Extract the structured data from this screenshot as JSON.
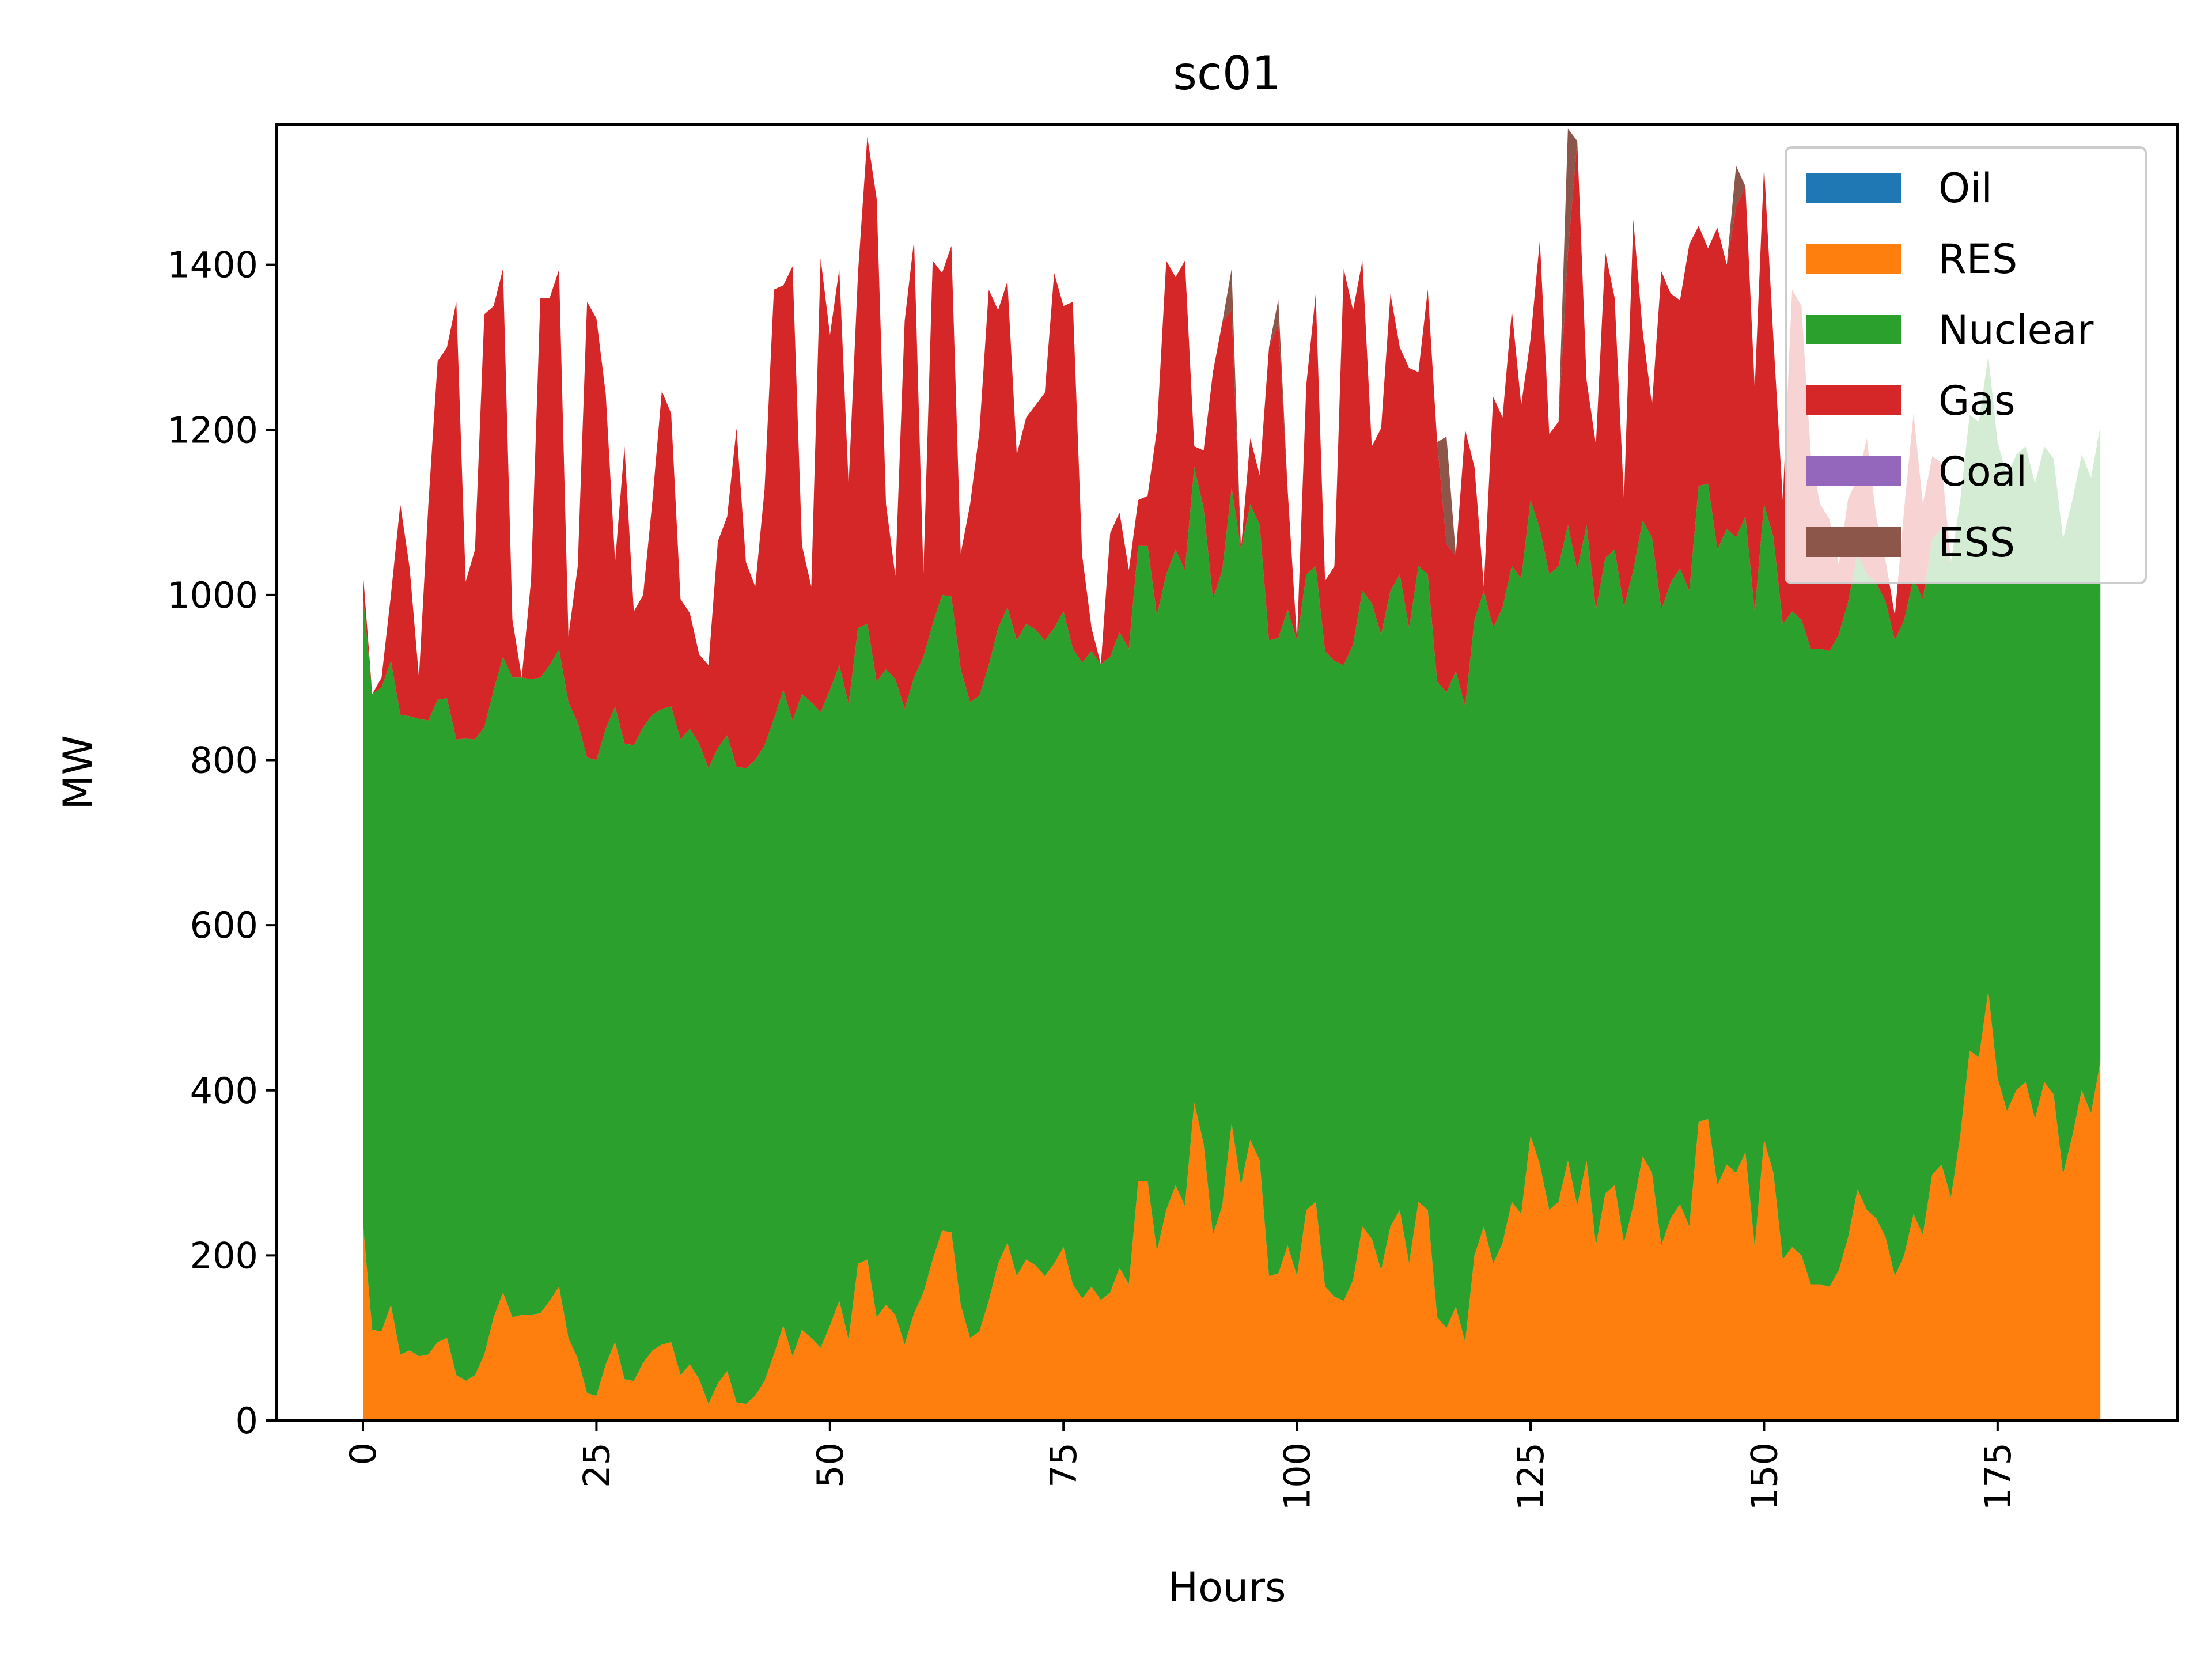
{
  "chart_data": {
    "type": "area",
    "stacked": true,
    "title": "sc01",
    "xlabel": "Hours",
    "ylabel": "MW",
    "xlim": [
      -9.25,
      194.25
    ],
    "ylim": [
      0,
      1570
    ],
    "x_ticks": [
      0,
      25,
      50,
      75,
      100,
      125,
      150,
      175
    ],
    "y_ticks": [
      0,
      200,
      400,
      600,
      800,
      1000,
      1200,
      1400
    ],
    "x_tick_rotation": 90,
    "grid": false,
    "legend_position": "top-right",
    "x_start": 0,
    "x_step": 1,
    "series": [
      {
        "name": "Oil",
        "color": "#1f77b4",
        "values": []
      },
      {
        "name": "RES",
        "color": "#ff7f0e",
        "values": [
          240,
          110,
          108,
          140,
          80,
          85,
          78,
          80,
          95,
          100,
          55,
          48,
          55,
          80,
          125,
          155,
          125,
          128,
          128,
          130,
          145,
          162,
          100,
          75,
          33,
          30,
          68,
          95,
          50,
          48,
          70,
          85,
          92,
          95,
          55,
          68,
          50,
          20,
          45,
          60,
          22,
          20,
          30,
          48,
          80,
          115,
          78,
          110,
          100,
          88,
          115,
          145,
          98,
          190,
          195,
          125,
          140,
          128,
          92,
          130,
          155,
          195,
          230,
          228,
          140,
          100,
          108,
          145,
          190,
          215,
          175,
          195,
          188,
          175,
          190,
          210,
          165,
          148,
          162,
          146,
          155,
          185,
          165,
          290,
          290,
          205,
          255,
          285,
          260,
          385,
          335,
          225,
          260,
          360,
          285,
          340,
          315,
          175,
          178,
          212,
          175,
          255,
          265,
          162,
          150,
          145,
          170,
          235,
          220,
          182,
          235,
          255,
          190,
          265,
          255,
          125,
          112,
          138,
          95,
          200,
          235,
          190,
          215,
          265,
          250,
          345,
          310,
          255,
          265,
          315,
          260,
          315,
          212,
          275,
          285,
          215,
          260,
          320,
          300,
          212,
          245,
          262,
          235,
          362,
          365,
          285,
          310,
          300,
          325,
          210,
          340,
          300,
          195,
          210,
          200,
          165,
          165,
          162,
          182,
          222,
          280,
          255,
          245,
          222,
          175,
          200,
          250,
          225,
          298,
          310,
          270,
          345,
          448,
          440,
          520,
          415,
          375,
          400,
          410,
          365,
          410,
          395,
          298,
          345,
          400,
          372,
          435
        ]
      },
      {
        "name": "Nuclear",
        "color": "#2ca02c",
        "values": [
          760,
          770,
          780,
          780,
          775,
          768,
          772,
          768,
          778,
          775,
          770,
          778,
          770,
          760,
          760,
          770,
          775,
          772,
          770,
          770,
          770,
          772,
          770,
          770,
          770,
          770,
          770,
          770,
          770,
          770,
          770,
          770,
          770,
          770,
          770,
          770,
          770,
          770,
          770,
          770,
          770,
          770,
          770,
          770,
          770,
          770,
          770,
          770,
          770,
          770,
          770,
          770,
          770,
          770,
          770,
          770,
          770,
          770,
          770,
          770,
          770,
          770,
          770,
          770,
          770,
          770,
          770,
          770,
          770,
          770,
          770,
          770,
          770,
          770,
          770,
          770,
          770,
          770,
          770,
          770,
          770,
          770,
          770,
          770,
          770,
          770,
          770,
          770,
          770,
          770,
          770,
          770,
          770,
          770,
          770,
          770,
          770,
          770,
          770,
          770,
          770,
          770,
          770,
          770,
          770,
          770,
          770,
          770,
          770,
          770,
          770,
          770,
          770,
          770,
          770,
          770,
          770,
          770,
          770,
          770,
          770,
          770,
          770,
          770,
          770,
          770,
          770,
          770,
          770,
          770,
          770,
          770,
          770,
          770,
          770,
          770,
          770,
          770,
          770,
          770,
          770,
          770,
          770,
          770,
          770,
          770,
          770,
          770,
          770,
          770,
          770,
          770,
          770,
          770,
          770,
          770,
          770,
          770,
          770,
          770,
          770,
          770,
          770,
          770,
          770,
          770,
          770,
          770,
          770,
          770,
          770,
          770,
          770,
          770,
          770,
          770,
          770,
          770,
          770,
          770,
          770,
          770,
          770,
          770,
          770,
          770,
          770
        ]
      },
      {
        "name": "Gas",
        "color": "#d62728",
        "values": [
          28,
          0,
          12,
          80,
          255,
          180,
          50,
          260,
          410,
          425,
          530,
          190,
          230,
          500,
          465,
          470,
          70,
          0,
          120,
          460,
          445,
          460,
          80,
          190,
          552,
          535,
          405,
          175,
          360,
          162,
          160,
          260,
          385,
          355,
          170,
          140,
          108,
          125,
          250,
          265,
          410,
          250,
          210,
          310,
          520,
          490,
          550,
          180,
          140,
          550,
          430,
          480,
          265,
          430,
          590,
          585,
          200,
          125,
          470,
          530,
          100,
          440,
          390,
          425,
          140,
          240,
          320,
          455,
          385,
          395,
          225,
          250,
          272,
          300,
          430,
          370,
          420,
          130,
          28,
          0,
          150,
          145,
          95,
          55,
          60,
          225,
          380,
          330,
          375,
          25,
          70,
          275,
          300,
          215,
          0,
          80,
          60,
          355,
          380,
          145,
          0,
          230,
          330,
          85,
          115,
          480,
          405,
          400,
          190,
          250,
          360,
          275,
          315,
          235,
          345,
          290,
          180,
          140,
          335,
          185,
          5,
          280,
          230,
          310,
          210,
          195,
          350,
          170,
          175,
          330,
          520,
          175,
          200,
          370,
          305,
          130,
          425,
          230,
          160,
          410,
          350,
          325,
          420,
          315,
          285,
          390,
          320,
          400,
          400,
          270,
          410,
          240,
          150,
          390,
          380,
          235,
          175,
          160,
          85,
          125,
          90,
          165,
          80,
          50,
          30,
          135,
          200,
          115,
          100,
          80,
          0,
          0,
          0,
          0,
          0,
          0,
          0,
          0,
          0,
          0,
          0,
          0,
          0,
          0,
          0,
          0,
          0
        ]
      },
      {
        "name": "Coal",
        "color": "#9467bd",
        "values": []
      },
      {
        "name": "ESS",
        "color": "#8c564b",
        "values": [
          0,
          0,
          0,
          0,
          0,
          0,
          0,
          0,
          0,
          0,
          0,
          0,
          0,
          0,
          0,
          0,
          0,
          0,
          0,
          0,
          0,
          0,
          0,
          0,
          0,
          0,
          0,
          0,
          0,
          0,
          0,
          0,
          0,
          0,
          0,
          0,
          0,
          0,
          0,
          0,
          0,
          0,
          0,
          0,
          0,
          0,
          0,
          0,
          0,
          0,
          0,
          0,
          0,
          0,
          0,
          0,
          0,
          0,
          0,
          0,
          0,
          0,
          0,
          0,
          0,
          0,
          0,
          0,
          0,
          0,
          0,
          0,
          0,
          0,
          0,
          0,
          0,
          0,
          0,
          0,
          0,
          0,
          0,
          0,
          0,
          0,
          0,
          0,
          0,
          0,
          0,
          0,
          0,
          50,
          0,
          0,
          0,
          0,
          30,
          0,
          0,
          0,
          0,
          0,
          0,
          0,
          0,
          0,
          0,
          0,
          0,
          0,
          0,
          0,
          0,
          0,
          130,
          0,
          0,
          0,
          0,
          0,
          0,
          0,
          0,
          0,
          0,
          0,
          0,
          150,
          0,
          0,
          0,
          0,
          0,
          0,
          0,
          0,
          0,
          0,
          0,
          0,
          0,
          0,
          0,
          0,
          0,
          50,
          0,
          0,
          0,
          0,
          0,
          0,
          0,
          0,
          0,
          0,
          0,
          0,
          0,
          0,
          0,
          0,
          0,
          0,
          0,
          0,
          0,
          0,
          0,
          0,
          0,
          0,
          0,
          0,
          0,
          0,
          0,
          0,
          0,
          0,
          0,
          0,
          0,
          0,
          0
        ]
      }
    ]
  }
}
